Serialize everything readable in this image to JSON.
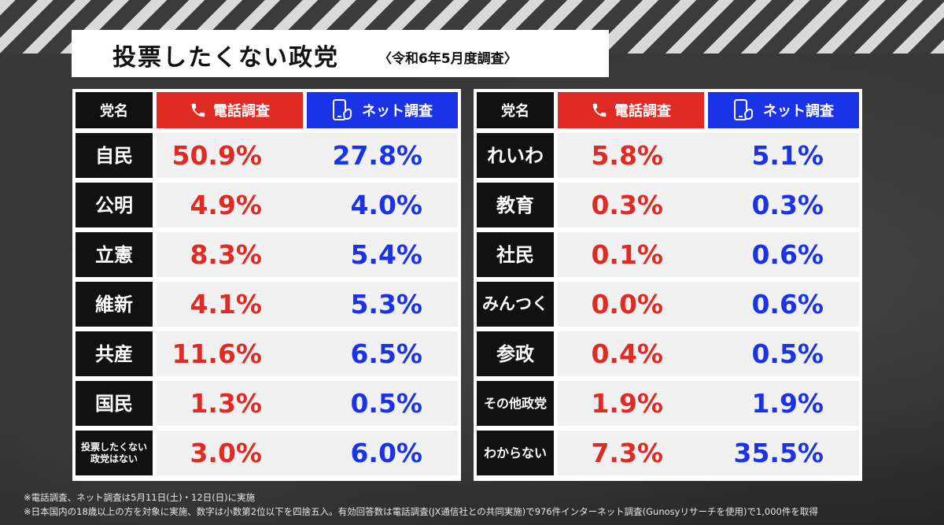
{
  "title": {
    "main": "投票したくない政党",
    "sub": "〈令和6年5月度調査〉"
  },
  "columns": {
    "party": "党名",
    "phone": "電話調査",
    "net": "ネット調査"
  },
  "colors": {
    "phone": "#e02a24",
    "net": "#1b33e6",
    "name_bg": "#111111"
  },
  "icons": {
    "phone": "phone-icon",
    "net": "smartphone-touch-icon"
  },
  "chart_data": {
    "type": "table",
    "title": "投票したくない政党〈令和6年5月度調査〉",
    "columns": [
      "党名",
      "電話調査",
      "ネット調査"
    ],
    "left_rows": [
      {
        "party": "自民",
        "phone": "50.9%",
        "net": "27.8%"
      },
      {
        "party": "公明",
        "phone": "4.9%",
        "net": "4.0%"
      },
      {
        "party": "立憲",
        "phone": "8.3%",
        "net": "5.4%"
      },
      {
        "party": "維新",
        "phone": "4.1%",
        "net": "5.3%"
      },
      {
        "party": "共産",
        "phone": "11.6%",
        "net": "6.5%"
      },
      {
        "party": "国民",
        "phone": "1.3%",
        "net": "0.5%"
      },
      {
        "party": "投票したくない政党はない",
        "phone": "3.0%",
        "net": "6.0%"
      }
    ],
    "right_rows": [
      {
        "party": "れいわ",
        "phone": "5.8%",
        "net": "5.1%"
      },
      {
        "party": "教育",
        "phone": "0.3%",
        "net": "0.3%"
      },
      {
        "party": "社民",
        "phone": "0.1%",
        "net": "0.6%"
      },
      {
        "party": "みんつく",
        "phone": "0.0%",
        "net": "0.6%"
      },
      {
        "party": "参政",
        "phone": "0.4%",
        "net": "0.5%"
      },
      {
        "party": "その他政党",
        "phone": "1.9%",
        "net": "1.9%"
      },
      {
        "party": "わからない",
        "phone": "7.3%",
        "net": "35.5%"
      }
    ]
  },
  "footnotes": [
    "※電話調査、ネット調査は5月11日(土)・12日(日)に実施",
    "※日本国内の18歳以上の方を対象に実施、数字は小数第2位以下を四捨五入。有効回答数は電話調査(JX通信社との共同実施)で976件インターネット調査(Gunosyリサーチを使用)で1,000件を取得"
  ]
}
